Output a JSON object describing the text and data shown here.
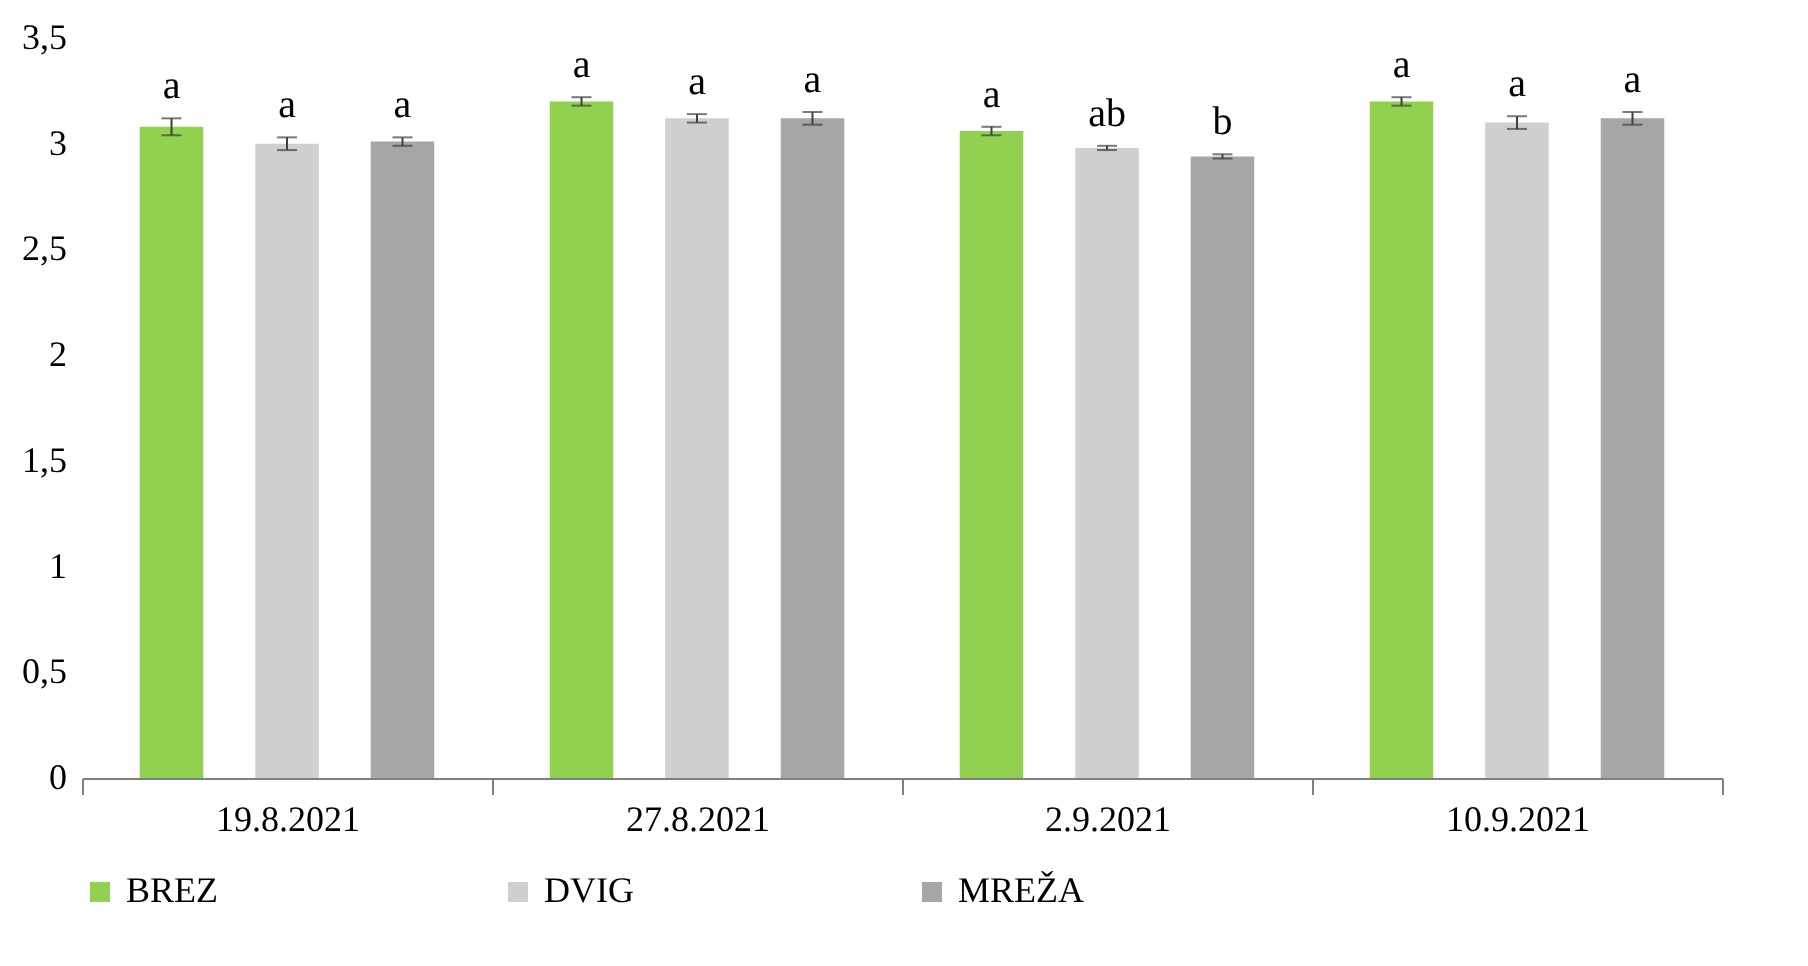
{
  "chart_data": {
    "type": "bar",
    "categories": [
      "19.8.2021",
      "27.8.2021",
      "2.9.2021",
      "10.9.2021"
    ],
    "series": [
      {
        "name": "BREZ",
        "color": "#92d050",
        "values": [
          3.08,
          3.2,
          3.06,
          3.2
        ],
        "errors": [
          0.04,
          0.02,
          0.02,
          0.02
        ],
        "value_labels": [
          "a",
          "a",
          "a",
          "a"
        ]
      },
      {
        "name": "DVIG",
        "color": "#d0cece",
        "values": [
          3.0,
          3.12,
          2.98,
          3.1
        ],
        "errors": [
          0.03,
          0.02,
          0.01,
          0.03
        ],
        "value_labels": [
          "a",
          "a",
          "ab",
          "a"
        ]
      },
      {
        "name": "MREŽA",
        "color": "#a6a6a6",
        "values": [
          3.01,
          3.12,
          2.94,
          3.12
        ],
        "errors": [
          0.02,
          0.03,
          0.01,
          0.03
        ],
        "value_labels": [
          "a",
          "a",
          "b",
          "a"
        ]
      }
    ],
    "ylim": [
      0,
      3.5
    ],
    "yticks": [
      0,
      {
        "value": 0.5,
        "label": "0,5"
      },
      1,
      {
        "value": 1.5,
        "label": "1,5"
      },
      2,
      {
        "value": 2.5,
        "label": "2,5"
      },
      3,
      {
        "value": 3.5,
        "label": "3,5"
      }
    ],
    "grid": false,
    "legend": "bottom"
  }
}
